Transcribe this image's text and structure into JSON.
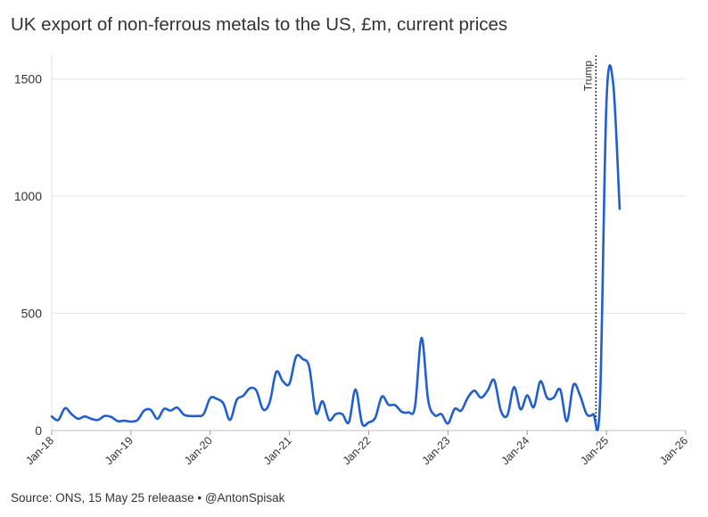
{
  "chart_data": {
    "type": "line",
    "title": "UK export of non-ferrous metals to the US, £m, current prices",
    "xlabel": "",
    "ylabel": "",
    "source": "Source: ONS, 15 May 25 releaase • @AntonSpisak",
    "ylim": [
      0,
      1600
    ],
    "yticks": [
      0,
      500,
      1000,
      1500
    ],
    "xlim": [
      "2018-01",
      "2026-01"
    ],
    "xticks": [
      {
        "date": "2018-01",
        "label": "Jan-18"
      },
      {
        "date": "2019-01",
        "label": "Jan-19"
      },
      {
        "date": "2020-01",
        "label": "Jan-20"
      },
      {
        "date": "2021-01",
        "label": "Jan-21"
      },
      {
        "date": "2022-01",
        "label": "Jan-22"
      },
      {
        "date": "2023-01",
        "label": "Jan-23"
      },
      {
        "date": "2024-01",
        "label": "Jan-24"
      },
      {
        "date": "2025-01",
        "label": "Jan-25"
      },
      {
        "date": "2026-01",
        "label": "Jan-26"
      }
    ],
    "grid": "horizontal",
    "line_color": "#1f5fd1",
    "annotation": {
      "label": "Trump",
      "date": "2024-11"
    },
    "series": [
      {
        "x": [
          "2018-01",
          "2018-02",
          "2018-03",
          "2018-04",
          "2018-05",
          "2018-06",
          "2018-07",
          "2018-08",
          "2018-09",
          "2018-10",
          "2018-11",
          "2018-12",
          "2019-01",
          "2019-02",
          "2019-03",
          "2019-04",
          "2019-05",
          "2019-06",
          "2019-07",
          "2019-08",
          "2019-09",
          "2019-10",
          "2019-11",
          "2019-12",
          "2020-01",
          "2020-02",
          "2020-03",
          "2020-04",
          "2020-05",
          "2020-06",
          "2020-07",
          "2020-08",
          "2020-09",
          "2020-10",
          "2020-11",
          "2020-12",
          "2021-01",
          "2021-02",
          "2021-03",
          "2021-04",
          "2021-05",
          "2021-06",
          "2021-07",
          "2021-08",
          "2021-09",
          "2021-10",
          "2021-11",
          "2021-12",
          "2022-01",
          "2022-02",
          "2022-03",
          "2022-04",
          "2022-05",
          "2022-06",
          "2022-07",
          "2022-08",
          "2022-09",
          "2022-10",
          "2022-11",
          "2022-12",
          "2023-01",
          "2023-02",
          "2023-03",
          "2023-04",
          "2023-05",
          "2023-06",
          "2023-07",
          "2023-08",
          "2023-09",
          "2023-10",
          "2023-11",
          "2023-12",
          "2024-01",
          "2024-02",
          "2024-03",
          "2024-04",
          "2024-05",
          "2024-06",
          "2024-07",
          "2024-08",
          "2024-09",
          "2024-10",
          "2024-11",
          "2024-12",
          "2025-01",
          "2025-02",
          "2025-03"
        ],
        "values": [
          60,
          45,
          95,
          70,
          50,
          60,
          50,
          45,
          62,
          58,
          40,
          42,
          38,
          45,
          85,
          88,
          50,
          92,
          85,
          98,
          68,
          62,
          62,
          70,
          138,
          135,
          115,
          45,
          130,
          148,
          180,
          170,
          90,
          120,
          250,
          210,
          200,
          315,
          305,
          270,
          75,
          125,
          45,
          70,
          70,
          35,
          175,
          30,
          35,
          55,
          145,
          110,
          108,
          80,
          78,
          100,
          395,
          130,
          65,
          70,
          30,
          92,
          85,
          140,
          170,
          140,
          170,
          215,
          85,
          65,
          185,
          90,
          150,
          100,
          210,
          140,
          140,
          175,
          40,
          195,
          150,
          70,
          70,
          110,
          1400,
          1485,
          945
        ]
      }
    ]
  }
}
